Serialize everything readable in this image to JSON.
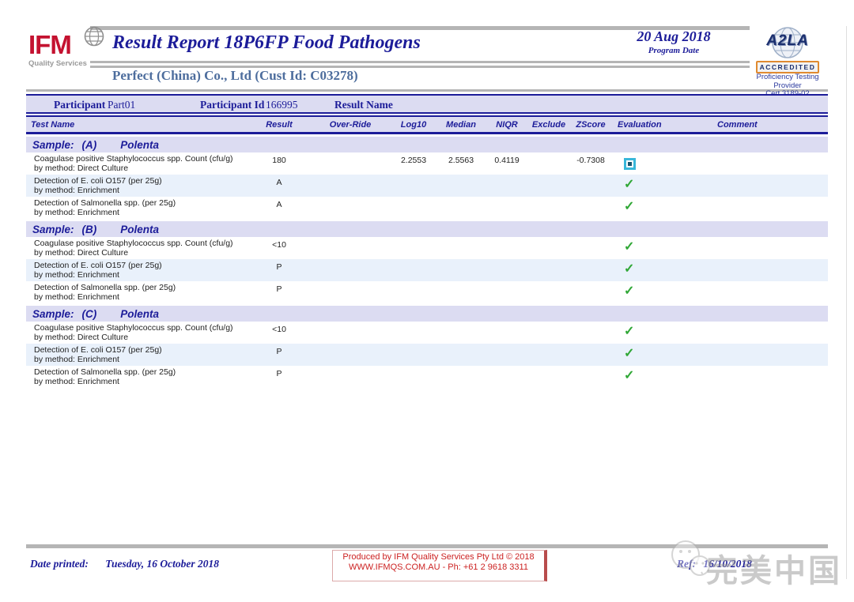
{
  "logo": {
    "name": "IFM",
    "tagline": "Quality Services"
  },
  "header": {
    "title": "Result Report 18P6FP Food Pathogens",
    "program_date": "20 Aug 2018",
    "program_date_label": "Program Date",
    "customer": "Perfect (China) Co., Ltd (Cust Id: C03278)"
  },
  "accreditation": {
    "mark": "A2LA",
    "accredited": "ACCREDITED",
    "lines": [
      "Proficiency Testing",
      "Provider",
      "Cert 3189-02"
    ]
  },
  "participant": {
    "label": "Participant",
    "value": "Part01",
    "id_label": "Participant Id",
    "id_value": "166995",
    "result_name_label": "Result Name"
  },
  "table": {
    "columns": [
      "Test Name",
      "Result",
      "Over-Ride",
      "Log10",
      "Median",
      "NIQR",
      "Exclude",
      "ZScore",
      "Evaluation",
      "Comment"
    ],
    "sections": [
      {
        "sample_prefix": "Sample:",
        "sample_id": "(A)",
        "sample_name": "Polenta",
        "rows": [
          {
            "test": "Coagulase positive Staphylococcus spp. Count (cfu/g)",
            "method": "by method: Direct Culture",
            "result": "180",
            "override": "",
            "log10": "2.2553",
            "median": "2.5563",
            "niqr": "0.4119",
            "exclude": "",
            "zscore": "-0.7308",
            "evaluation": "square",
            "comment": ""
          },
          {
            "test": "Detection of E. coli O157 (per 25g)",
            "method": "by method: Enrichment",
            "result": "A",
            "override": "",
            "log10": "",
            "median": "",
            "niqr": "",
            "exclude": "",
            "zscore": "",
            "evaluation": "check",
            "comment": ""
          },
          {
            "test": "Detection of Salmonella spp. (per 25g)",
            "method": "by method: Enrichment",
            "result": "A",
            "override": "",
            "log10": "",
            "median": "",
            "niqr": "",
            "exclude": "",
            "zscore": "",
            "evaluation": "check",
            "comment": ""
          }
        ]
      },
      {
        "sample_prefix": "Sample:",
        "sample_id": "(B)",
        "sample_name": "Polenta",
        "rows": [
          {
            "test": "Coagulase positive Staphylococcus spp. Count (cfu/g)",
            "method": "by method: Direct Culture",
            "result": "<10",
            "override": "",
            "log10": "",
            "median": "",
            "niqr": "",
            "exclude": "",
            "zscore": "",
            "evaluation": "check",
            "comment": ""
          },
          {
            "test": "Detection of E. coli O157 (per 25g)",
            "method": "by method: Enrichment",
            "result": "P",
            "override": "",
            "log10": "",
            "median": "",
            "niqr": "",
            "exclude": "",
            "zscore": "",
            "evaluation": "check",
            "comment": ""
          },
          {
            "test": "Detection of Salmonella spp. (per 25g)",
            "method": "by method: Enrichment",
            "result": "P",
            "override": "",
            "log10": "",
            "median": "",
            "niqr": "",
            "exclude": "",
            "zscore": "",
            "evaluation": "check",
            "comment": ""
          }
        ]
      },
      {
        "sample_prefix": "Sample:",
        "sample_id": "(C)",
        "sample_name": "Polenta",
        "rows": [
          {
            "test": "Coagulase positive Staphylococcus spp. Count (cfu/g)",
            "method": "by method: Direct Culture",
            "result": "<10",
            "override": "",
            "log10": "",
            "median": "",
            "niqr": "",
            "exclude": "",
            "zscore": "",
            "evaluation": "check",
            "comment": ""
          },
          {
            "test": "Detection of E. coli O157 (per 25g)",
            "method": "by method: Enrichment",
            "result": "P",
            "override": "",
            "log10": "",
            "median": "",
            "niqr": "",
            "exclude": "",
            "zscore": "",
            "evaluation": "check",
            "comment": ""
          },
          {
            "test": "Detection of Salmonella spp. (per 25g)",
            "method": "by method: Enrichment",
            "result": "P",
            "override": "",
            "log10": "",
            "median": "",
            "niqr": "",
            "exclude": "",
            "zscore": "",
            "evaluation": "check",
            "comment": ""
          }
        ]
      }
    ]
  },
  "footer": {
    "date_printed_label": "Date printed:",
    "date_printed_value": "Tuesday, 16 October 2018",
    "produced_line1": "Produced by IFM Quality Services Pty Ltd © 2018",
    "produced_line2": "WWW.IFMQS.COM.AU - Ph: +61 2 9618 3311",
    "ref_label": "Ref:",
    "ref_value": "16/10/2018"
  },
  "watermark": {
    "text": "完美中国"
  },
  "colors": {
    "navy": "#1c1c99",
    "band_lavender": "#dcdcf2",
    "alt_row_blue": "#e9f1fb",
    "logo_red": "#c41230",
    "footer_red": "#cc2222",
    "check_green": "#2fa735",
    "square_cyan": "#38b7da",
    "customer_blue": "#4d6d9d",
    "bar_gray": "#b5b5b5"
  }
}
